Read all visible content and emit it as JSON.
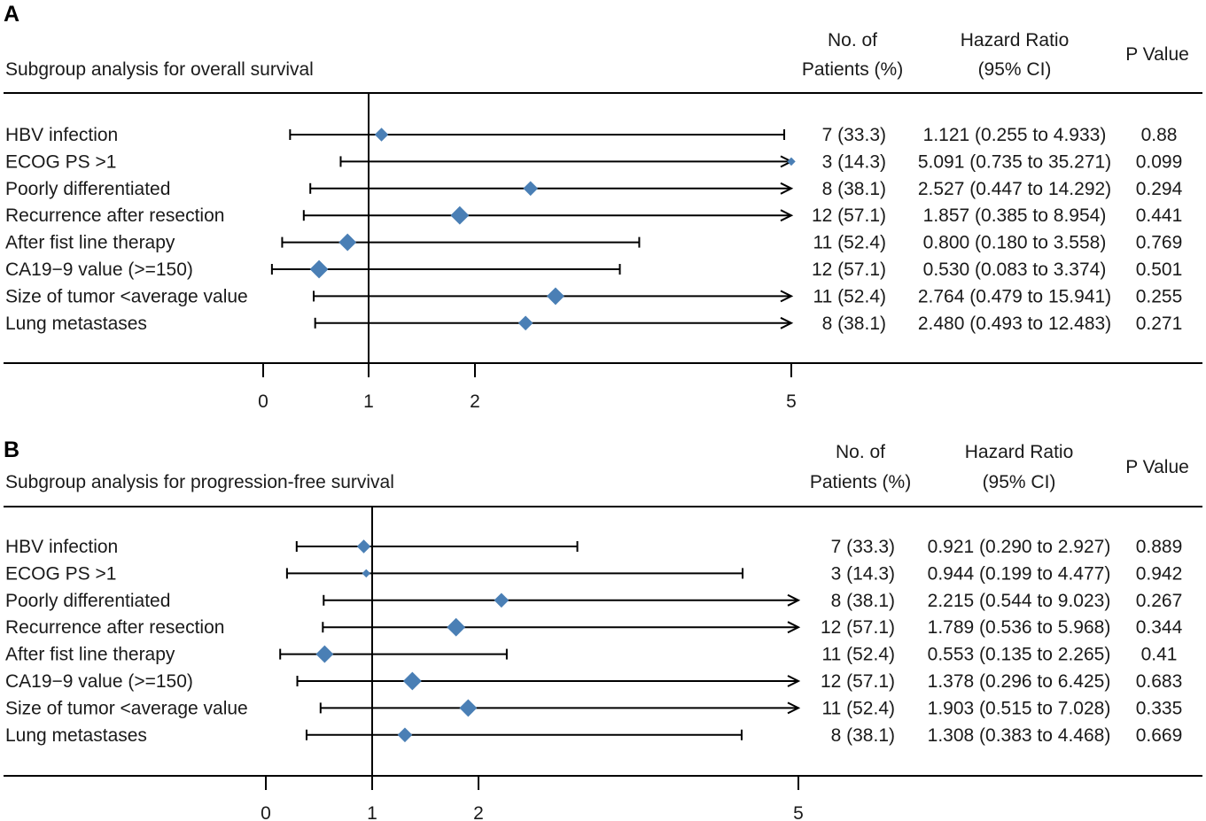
{
  "chart_data": [
    {
      "type": "forest",
      "panel": "A",
      "title": "Subgroup analysis for overall survival",
      "columns": {
        "patients": [
          "No. of",
          "Patients (%)"
        ],
        "hr": [
          "Hazard Ratio",
          "(95% CI)"
        ],
        "p": "P Value"
      },
      "xticks": [
        0,
        1,
        2,
        5
      ],
      "reference": 1,
      "rows": [
        {
          "label": "HBV infection",
          "hr": 1.121,
          "low": 0.255,
          "high": 4.933,
          "patients": "7 (33.3)",
          "ci_text": "1.121 (0.255 to  4.933)",
          "p": "0.88"
        },
        {
          "label": "ECOG PS >1",
          "hr": 5.091,
          "low": 0.735,
          "high": 35.271,
          "patients": "3 (14.3)",
          "ci_text": "5.091 (0.735 to 35.271)",
          "p": "0.099"
        },
        {
          "label": "Poorly differentiated",
          "hr": 2.527,
          "low": 0.447,
          "high": 14.292,
          "patients": "8 (38.1)",
          "ci_text": "2.527 (0.447 to 14.292)",
          "p": "0.294"
        },
        {
          "label": "Recurrence after resection",
          "hr": 1.857,
          "low": 0.385,
          "high": 8.954,
          "patients": "12 (57.1)",
          "ci_text": "1.857 (0.385 to  8.954)",
          "p": "0.441"
        },
        {
          "label": "After fist line therapy",
          "hr": 0.8,
          "low": 0.18,
          "high": 3.558,
          "patients": "11 (52.4)",
          "ci_text": "0.800 (0.180 to  3.558)",
          "p": "0.769"
        },
        {
          "label": "CA19−9 value (>=150)",
          "hr": 0.53,
          "low": 0.083,
          "high": 3.374,
          "patients": "12 (57.1)",
          "ci_text": "0.530 (0.083 to  3.374)",
          "p": "0.501"
        },
        {
          "label": "Size of tumor <average value",
          "hr": 2.764,
          "low": 0.479,
          "high": 15.941,
          "patients": "11 (52.4)",
          "ci_text": "2.764 (0.479 to 15.941)",
          "p": "0.255"
        },
        {
          "label": "Lung metastases",
          "hr": 2.48,
          "low": 0.493,
          "high": 12.483,
          "patients": "8 (38.1)",
          "ci_text": "2.480 (0.493 to 12.483)",
          "p": "0.271"
        }
      ]
    },
    {
      "type": "forest",
      "panel": "B",
      "title": "Subgroup analysis for progression-free survival",
      "columns": {
        "patients": [
          "No. of",
          "Patients (%)"
        ],
        "hr": [
          "Hazard Ratio",
          "(95% CI)"
        ],
        "p": "P Value"
      },
      "xticks": [
        0,
        1,
        2,
        5
      ],
      "reference": 1,
      "rows": [
        {
          "label": "HBV infection",
          "hr": 0.921,
          "low": 0.29,
          "high": 2.927,
          "patients": "7 (33.3)",
          "ci_text": "0.921 (0.290 to 2.927)",
          "p": "0.889"
        },
        {
          "label": "ECOG PS >1",
          "hr": 0.944,
          "low": 0.199,
          "high": 4.477,
          "patients": "3 (14.3)",
          "ci_text": "0.944 (0.199 to 4.477)",
          "p": "0.942"
        },
        {
          "label": "Poorly differentiated",
          "hr": 2.215,
          "low": 0.544,
          "high": 9.023,
          "patients": "8 (38.1)",
          "ci_text": "2.215 (0.544 to 9.023)",
          "p": "0.267"
        },
        {
          "label": "Recurrence after resection",
          "hr": 1.789,
          "low": 0.536,
          "high": 5.968,
          "patients": "12 (57.1)",
          "ci_text": "1.789 (0.536 to 5.968)",
          "p": "0.344"
        },
        {
          "label": "After fist line therapy",
          "hr": 0.553,
          "low": 0.135,
          "high": 2.265,
          "patients": "11 (52.4)",
          "ci_text": "0.553 (0.135 to 2.265)",
          "p": "0.41"
        },
        {
          "label": "CA19−9 value (>=150)",
          "hr": 1.378,
          "low": 0.296,
          "high": 6.425,
          "patients": "12 (57.1)",
          "ci_text": "1.378 (0.296 to 6.425)",
          "p": "0.683"
        },
        {
          "label": "Size of tumor <average value",
          "hr": 1.903,
          "low": 0.515,
          "high": 7.028,
          "patients": "11 (52.4)",
          "ci_text": "1.903 (0.515 to 7.028)",
          "p": "0.335"
        },
        {
          "label": "Lung metastases",
          "hr": 1.308,
          "low": 0.383,
          "high": 4.468,
          "patients": "8 (38.1)",
          "ci_text": "1.308 (0.383 to 4.468)",
          "p": "0.669"
        }
      ]
    }
  ],
  "colors": {
    "marker": "#4a7fb5",
    "line": "#000000",
    "text": "#1a1a1a"
  }
}
